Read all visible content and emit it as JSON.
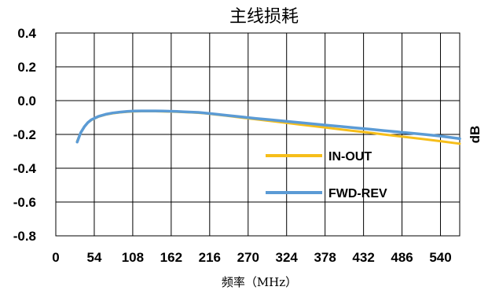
{
  "chart_data": {
    "type": "line",
    "title": "主线损耗",
    "xlabel": "频率（MHz）",
    "ylabel": "dB",
    "xlim": [
      0,
      567
    ],
    "ylim": [
      -0.8,
      0.4
    ],
    "xticks": [
      "0",
      "54",
      "108",
      "162",
      "216",
      "270",
      "324",
      "378",
      "432",
      "486",
      "540"
    ],
    "yticks": [
      "0.4",
      "0.2",
      "0.0",
      "-0.2",
      "-0.4",
      "-0.6",
      "-0.8"
    ],
    "grid": true,
    "legend_position": "right-middle",
    "series": [
      {
        "name": "IN-OUT",
        "color": "#F6BE1A",
        "x": [
          30,
          35,
          40,
          45,
          50,
          60,
          70,
          80,
          90,
          100,
          110,
          120,
          130,
          140,
          150,
          160,
          170,
          180,
          190,
          200,
          210,
          220,
          240,
          260,
          280,
          300,
          320,
          340,
          360,
          380,
          400,
          420,
          440,
          460,
          480,
          500,
          520,
          540,
          567
        ],
        "y": [
          -0.24,
          -0.19,
          -0.155,
          -0.13,
          -0.115,
          -0.095,
          -0.083,
          -0.075,
          -0.07,
          -0.066,
          -0.064,
          -0.063,
          -0.063,
          -0.063,
          -0.064,
          -0.065,
          -0.066,
          -0.068,
          -0.07,
          -0.072,
          -0.076,
          -0.08,
          -0.09,
          -0.1,
          -0.11,
          -0.12,
          -0.13,
          -0.14,
          -0.15,
          -0.16,
          -0.17,
          -0.18,
          -0.19,
          -0.2,
          -0.21,
          -0.22,
          -0.23,
          -0.24,
          -0.255
        ]
      },
      {
        "name": "FWD-REV",
        "color": "#5B9BD5",
        "x": [
          30,
          35,
          40,
          45,
          50,
          60,
          70,
          80,
          90,
          100,
          110,
          120,
          130,
          140,
          150,
          160,
          170,
          180,
          190,
          200,
          210,
          220,
          240,
          260,
          280,
          300,
          320,
          340,
          360,
          380,
          400,
          420,
          440,
          460,
          480,
          500,
          520,
          540,
          567
        ],
        "y": [
          -0.245,
          -0.19,
          -0.155,
          -0.13,
          -0.113,
          -0.093,
          -0.081,
          -0.073,
          -0.068,
          -0.064,
          -0.062,
          -0.061,
          -0.061,
          -0.061,
          -0.062,
          -0.063,
          -0.064,
          -0.066,
          -0.068,
          -0.07,
          -0.074,
          -0.078,
          -0.087,
          -0.096,
          -0.105,
          -0.113,
          -0.121,
          -0.129,
          -0.137,
          -0.145,
          -0.153,
          -0.161,
          -0.169,
          -0.177,
          -0.185,
          -0.193,
          -0.201,
          -0.21,
          -0.225
        ]
      }
    ]
  }
}
